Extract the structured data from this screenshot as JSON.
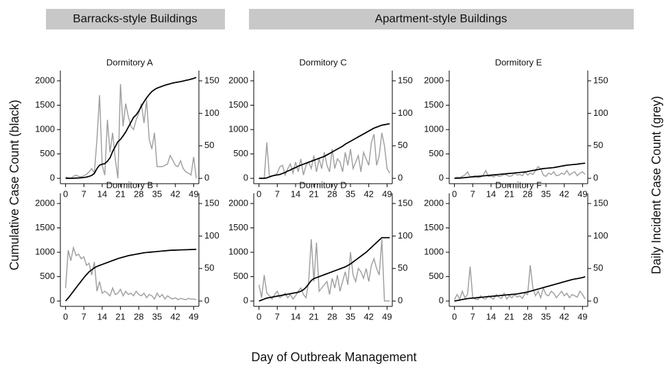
{
  "group_labels": [
    "Barracks-style Buildings",
    "Apartment-style Buildings"
  ],
  "y_label": "Cumulative Case Count (black)",
  "y2_label": "Daily Incident Case Count (grey)",
  "x_label": "Day of Outbreak Management",
  "chart_data": [
    {
      "type": "line",
      "title": "Dormitory A",
      "x": [
        0,
        1,
        2,
        3,
        4,
        5,
        6,
        7,
        8,
        9,
        10,
        11,
        12,
        13,
        14,
        15,
        16,
        17,
        18,
        19,
        20,
        21,
        22,
        23,
        24,
        25,
        26,
        27,
        28,
        29,
        30,
        31,
        32,
        33,
        34,
        35,
        36,
        37,
        38,
        39,
        40,
        41,
        42,
        43,
        44,
        45,
        46,
        47,
        48,
        49,
        50
      ],
      "series": [
        {
          "color": "#000000",
          "values": [
            0,
            0,
            0,
            2,
            5,
            8,
            12,
            16,
            25,
            40,
            60,
            100,
            200,
            270,
            290,
            300,
            350,
            420,
            550,
            650,
            750,
            800,
            870,
            950,
            1050,
            1150,
            1250,
            1300,
            1380,
            1480,
            1570,
            1650,
            1720,
            1780,
            1820,
            1850,
            1870,
            1890,
            1910,
            1925,
            1940,
            1955,
            1965,
            1975,
            1985,
            1995,
            2010,
            2020,
            2035,
            2050,
            2070
          ]
        },
        {
          "color": "#a0a0a0",
          "axis": "y2",
          "values": [
            2,
            1,
            0,
            3,
            5,
            3,
            2,
            4,
            6,
            10,
            15,
            8,
            60,
            128,
            20,
            5,
            90,
            40,
            70,
            30,
            0,
            145,
            80,
            115,
            95,
            80,
            75,
            90,
            100,
            115,
            85,
            120,
            60,
            45,
            70,
            18,
            18,
            18,
            20,
            22,
            35,
            28,
            20,
            18,
            27,
            15,
            10,
            8,
            5,
            33,
            0
          ]
        }
      ],
      "xlim": [
        -2,
        51
      ],
      "xticks": [
        0,
        7,
        14,
        21,
        28,
        35,
        42,
        49
      ],
      "ylim": [
        -110,
        2210
      ],
      "yticks": [
        0,
        500,
        1000,
        1500,
        2000
      ],
      "y2lim": [
        -8.25,
        165.75
      ],
      "y2ticks": [
        0,
        50,
        100,
        150
      ]
    },
    {
      "type": "line",
      "title": "Dormitory C",
      "x": [
        0,
        1,
        2,
        3,
        4,
        5,
        6,
        7,
        8,
        9,
        10,
        11,
        12,
        13,
        14,
        15,
        16,
        17,
        18,
        19,
        20,
        21,
        22,
        23,
        24,
        25,
        26,
        27,
        28,
        29,
        30,
        31,
        32,
        33,
        34,
        35,
        36,
        37,
        38,
        39,
        40,
        41,
        42,
        43,
        44,
        45,
        46,
        47,
        48,
        49,
        50
      ],
      "series": [
        {
          "color": "#000000",
          "values": [
            0,
            0,
            0,
            10,
            30,
            50,
            60,
            70,
            80,
            100,
            120,
            150,
            170,
            200,
            220,
            250,
            270,
            290,
            310,
            330,
            350,
            370,
            390,
            410,
            430,
            450,
            480,
            510,
            540,
            570,
            600,
            630,
            660,
            700,
            730,
            760,
            790,
            820,
            850,
            880,
            910,
            940,
            970,
            1000,
            1030,
            1050,
            1070,
            1090,
            1100,
            1110,
            1120
          ]
        },
        {
          "color": "#a0a0a0",
          "axis": "y2",
          "values": [
            0,
            0,
            0,
            55,
            2,
            3,
            5,
            8,
            18,
            20,
            5,
            15,
            22,
            8,
            25,
            10,
            30,
            5,
            20,
            25,
            15,
            35,
            10,
            30,
            15,
            40,
            20,
            10,
            45,
            15,
            30,
            25,
            10,
            40,
            20,
            45,
            15,
            25,
            35,
            10,
            40,
            30,
            20,
            55,
            68,
            20,
            35,
            70,
            50,
            15,
            8
          ]
        }
      ],
      "xlim": [
        -2,
        51
      ],
      "xticks": [
        0,
        7,
        14,
        21,
        28,
        35,
        42,
        49
      ],
      "ylim": [
        -110,
        2210
      ],
      "yticks": [
        0,
        500,
        1000,
        1500,
        2000
      ],
      "y2lim": [
        -8.25,
        165.75
      ],
      "y2ticks": [
        0,
        50,
        100,
        150
      ]
    },
    {
      "type": "line",
      "title": "Dormitory E",
      "x": [
        0,
        1,
        2,
        3,
        4,
        5,
        6,
        7,
        8,
        9,
        10,
        11,
        12,
        13,
        14,
        15,
        16,
        17,
        18,
        19,
        20,
        21,
        22,
        23,
        24,
        25,
        26,
        27,
        28,
        29,
        30,
        31,
        32,
        33,
        34,
        35,
        36,
        37,
        38,
        39,
        40,
        41,
        42,
        43,
        44,
        45,
        46,
        47,
        48,
        49,
        50
      ],
      "series": [
        {
          "color": "#000000",
          "values": [
            0,
            2,
            5,
            10,
            15,
            20,
            25,
            30,
            35,
            40,
            45,
            50,
            55,
            60,
            65,
            70,
            75,
            80,
            85,
            90,
            95,
            100,
            105,
            110,
            115,
            120,
            125,
            130,
            140,
            150,
            160,
            170,
            180,
            190,
            200,
            205,
            210,
            215,
            220,
            230,
            240,
            250,
            260,
            270,
            275,
            280,
            285,
            290,
            300,
            305,
            310
          ]
        },
        {
          "color": "#a0a0a0",
          "axis": "y2",
          "values": [
            0,
            2,
            1,
            3,
            5,
            10,
            2,
            3,
            4,
            1,
            2,
            5,
            12,
            3,
            4,
            2,
            5,
            3,
            4,
            6,
            5,
            3,
            4,
            8,
            5,
            6,
            4,
            10,
            5,
            8,
            6,
            12,
            18,
            15,
            5,
            3,
            8,
            6,
            10,
            4,
            5,
            8,
            6,
            12,
            5,
            8,
            10,
            4,
            8,
            10,
            6
          ]
        }
      ],
      "xlim": [
        -2,
        51
      ],
      "xticks": [
        0,
        7,
        14,
        21,
        28,
        35,
        42,
        49
      ],
      "ylim": [
        -110,
        2210
      ],
      "yticks": [
        0,
        500,
        1000,
        1500,
        2000
      ],
      "y2lim": [
        -8.25,
        165.75
      ],
      "y2ticks": [
        0,
        50,
        100,
        150
      ]
    },
    {
      "type": "line",
      "title": "Dormitory B",
      "x": [
        0,
        1,
        2,
        3,
        4,
        5,
        6,
        7,
        8,
        9,
        10,
        11,
        12,
        13,
        14,
        15,
        16,
        17,
        18,
        19,
        20,
        21,
        22,
        23,
        24,
        25,
        26,
        27,
        28,
        29,
        30,
        31,
        32,
        33,
        34,
        35,
        36,
        37,
        38,
        39,
        40,
        41,
        42,
        43,
        44,
        45,
        46,
        47,
        48,
        49,
        50
      ],
      "series": [
        {
          "color": "#000000",
          "values": [
            0,
            60,
            130,
            200,
            270,
            340,
            410,
            480,
            540,
            600,
            640,
            680,
            710,
            730,
            750,
            770,
            790,
            810,
            830,
            850,
            870,
            885,
            900,
            915,
            930,
            940,
            950,
            960,
            970,
            980,
            990,
            995,
            1000,
            1005,
            1010,
            1015,
            1020,
            1025,
            1030,
            1035,
            1040,
            1042,
            1044,
            1046,
            1048,
            1050,
            1052,
            1054,
            1056,
            1058,
            1060
          ]
        },
        {
          "color": "#a0a0a0",
          "axis": "y2",
          "values": [
            20,
            78,
            62,
            82,
            70,
            72,
            65,
            68,
            55,
            58,
            40,
            60,
            15,
            30,
            12,
            15,
            12,
            8,
            20,
            10,
            12,
            18,
            8,
            15,
            10,
            12,
            8,
            15,
            10,
            8,
            12,
            5,
            10,
            8,
            3,
            12,
            6,
            10,
            3,
            8,
            5,
            3,
            5,
            2,
            4,
            3,
            2,
            4,
            3,
            3,
            2
          ]
        }
      ],
      "xlim": [
        -2,
        51
      ],
      "xticks": [
        0,
        7,
        14,
        21,
        28,
        35,
        42,
        49
      ],
      "ylim": [
        -110,
        2210
      ],
      "yticks": [
        0,
        500,
        1000,
        1500,
        2000
      ],
      "y2lim": [
        -8.25,
        165.75
      ],
      "y2ticks": [
        0,
        50,
        100,
        150
      ]
    },
    {
      "type": "line",
      "title": "Dormitory D",
      "x": [
        0,
        1,
        2,
        3,
        4,
        5,
        6,
        7,
        8,
        9,
        10,
        11,
        12,
        13,
        14,
        15,
        16,
        17,
        18,
        19,
        20,
        21,
        22,
        23,
        24,
        25,
        26,
        27,
        28,
        29,
        30,
        31,
        32,
        33,
        34,
        35,
        36,
        37,
        38,
        39,
        40,
        41,
        42,
        43,
        44,
        45,
        46,
        47,
        48,
        49,
        50
      ],
      "series": [
        {
          "color": "#000000",
          "values": [
            0,
            20,
            40,
            60,
            70,
            80,
            90,
            100,
            110,
            120,
            130,
            140,
            150,
            160,
            170,
            180,
            200,
            230,
            280,
            350,
            420,
            460,
            480,
            500,
            520,
            540,
            560,
            580,
            600,
            620,
            640,
            660,
            680,
            700,
            730,
            760,
            800,
            840,
            880,
            920,
            960,
            1000,
            1050,
            1100,
            1150,
            1200,
            1250,
            1300,
            1300,
            1300,
            1300
          ]
        },
        {
          "color": "#a0a0a0",
          "axis": "y2",
          "values": [
            25,
            5,
            40,
            12,
            8,
            3,
            10,
            15,
            5,
            8,
            12,
            5,
            10,
            3,
            8,
            15,
            20,
            10,
            5,
            30,
            95,
            30,
            90,
            15,
            20,
            25,
            30,
            10,
            35,
            20,
            40,
            15,
            30,
            45,
            25,
            75,
            40,
            30,
            50,
            45,
            35,
            50,
            30,
            55,
            65,
            50,
            40,
            95,
            0,
            0,
            0
          ]
        }
      ],
      "xlim": [
        -2,
        51
      ],
      "xticks": [
        0,
        7,
        14,
        21,
        28,
        35,
        42,
        49
      ],
      "ylim": [
        -110,
        2210
      ],
      "yticks": [
        0,
        500,
        1000,
        1500,
        2000
      ],
      "y2lim": [
        -8.25,
        165.75
      ],
      "y2ticks": [
        0,
        50,
        100,
        150
      ]
    },
    {
      "type": "line",
      "title": "Dormitory F",
      "x": [
        0,
        1,
        2,
        3,
        4,
        5,
        6,
        7,
        8,
        9,
        10,
        11,
        12,
        13,
        14,
        15,
        16,
        17,
        18,
        19,
        20,
        21,
        22,
        23,
        24,
        25,
        26,
        27,
        28,
        29,
        30,
        31,
        32,
        33,
        34,
        35,
        36,
        37,
        38,
        39,
        40,
        41,
        42,
        43,
        44,
        45,
        46,
        47,
        48,
        49,
        50
      ],
      "series": [
        {
          "color": "#000000",
          "values": [
            0,
            10,
            20,
            30,
            40,
            50,
            55,
            60,
            65,
            70,
            75,
            80,
            85,
            90,
            95,
            100,
            105,
            110,
            115,
            120,
            125,
            130,
            135,
            140,
            145,
            155,
            165,
            175,
            185,
            200,
            215,
            230,
            245,
            260,
            275,
            290,
            305,
            320,
            335,
            350,
            365,
            380,
            395,
            410,
            425,
            440,
            450,
            460,
            470,
            480,
            500
          ]
        },
        {
          "color": "#a0a0a0",
          "axis": "y2",
          "values": [
            2,
            10,
            3,
            15,
            5,
            10,
            53,
            5,
            3,
            2,
            8,
            4,
            3,
            8,
            5,
            3,
            10,
            6,
            4,
            12,
            3,
            8,
            5,
            10,
            6,
            8,
            4,
            12,
            10,
            55,
            20,
            8,
            15,
            5,
            20,
            10,
            8,
            15,
            12,
            5,
            10,
            15,
            8,
            12,
            5,
            10,
            8,
            6,
            15,
            10,
            3
          ]
        }
      ],
      "xlim": [
        -2,
        51
      ],
      "xticks": [
        0,
        7,
        14,
        21,
        28,
        35,
        42,
        49
      ],
      "ylim": [
        -110,
        2210
      ],
      "yticks": [
        0,
        500,
        1000,
        1500,
        2000
      ],
      "y2lim": [
        -8.25,
        165.75
      ],
      "y2ticks": [
        0,
        50,
        100,
        150
      ]
    }
  ]
}
